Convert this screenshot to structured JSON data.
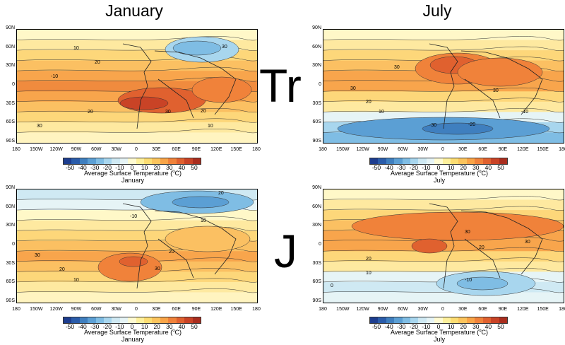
{
  "column_titles": [
    "January",
    "July"
  ],
  "row_labels": [
    "Tr",
    "J"
  ],
  "lat_ticks": [
    "90N",
    "60N",
    "30N",
    "0",
    "30S",
    "60S",
    "90S"
  ],
  "lon_ticks": [
    "180",
    "150W",
    "120W",
    "90W",
    "60W",
    "30W",
    "0",
    "30E",
    "60E",
    "90E",
    "120E",
    "150E",
    "180"
  ],
  "colorbar": {
    "ticks": [
      "-50",
      "-40",
      "-30",
      "-20",
      "-10",
      "0",
      "10",
      "20",
      "30",
      "40",
      "50"
    ],
    "colors": [
      "#1d3d8f",
      "#2a5caa",
      "#3f7fbf",
      "#5b9fd4",
      "#7fbde4",
      "#a8d6ee",
      "#cfe9f3",
      "#e6f4f6",
      "#fffbd2",
      "#fef09b",
      "#fddd72",
      "#fcc45c",
      "#f9a447",
      "#f0823a",
      "#e0612f",
      "#c94326",
      "#a92d1e"
    ],
    "title": "Average Surface Temperature (",
    "unit_sup": "o",
    "unit_tail": "C)"
  },
  "panels": [
    {
      "id": "tr-jan",
      "month": "January",
      "subtitle": "January",
      "contour_labels": [
        "10",
        "20",
        "30",
        "-10",
        "30",
        "20",
        "10",
        "30",
        "20"
      ]
    },
    {
      "id": "tr-jul",
      "month": "July",
      "subtitle": "July",
      "contour_labels": [
        "30",
        "30",
        "20",
        "10",
        "-10",
        "-20",
        "-30",
        "30"
      ]
    },
    {
      "id": "j-jan",
      "month": "January",
      "subtitle": "January",
      "contour_labels": [
        "20",
        "10",
        "-10",
        "30",
        "20",
        "30",
        "10",
        "20"
      ]
    },
    {
      "id": "j-jul",
      "month": "July",
      "subtitle": "July",
      "contour_labels": [
        "30",
        "20",
        "10",
        "0",
        "-10",
        "20",
        "30"
      ]
    }
  ]
}
